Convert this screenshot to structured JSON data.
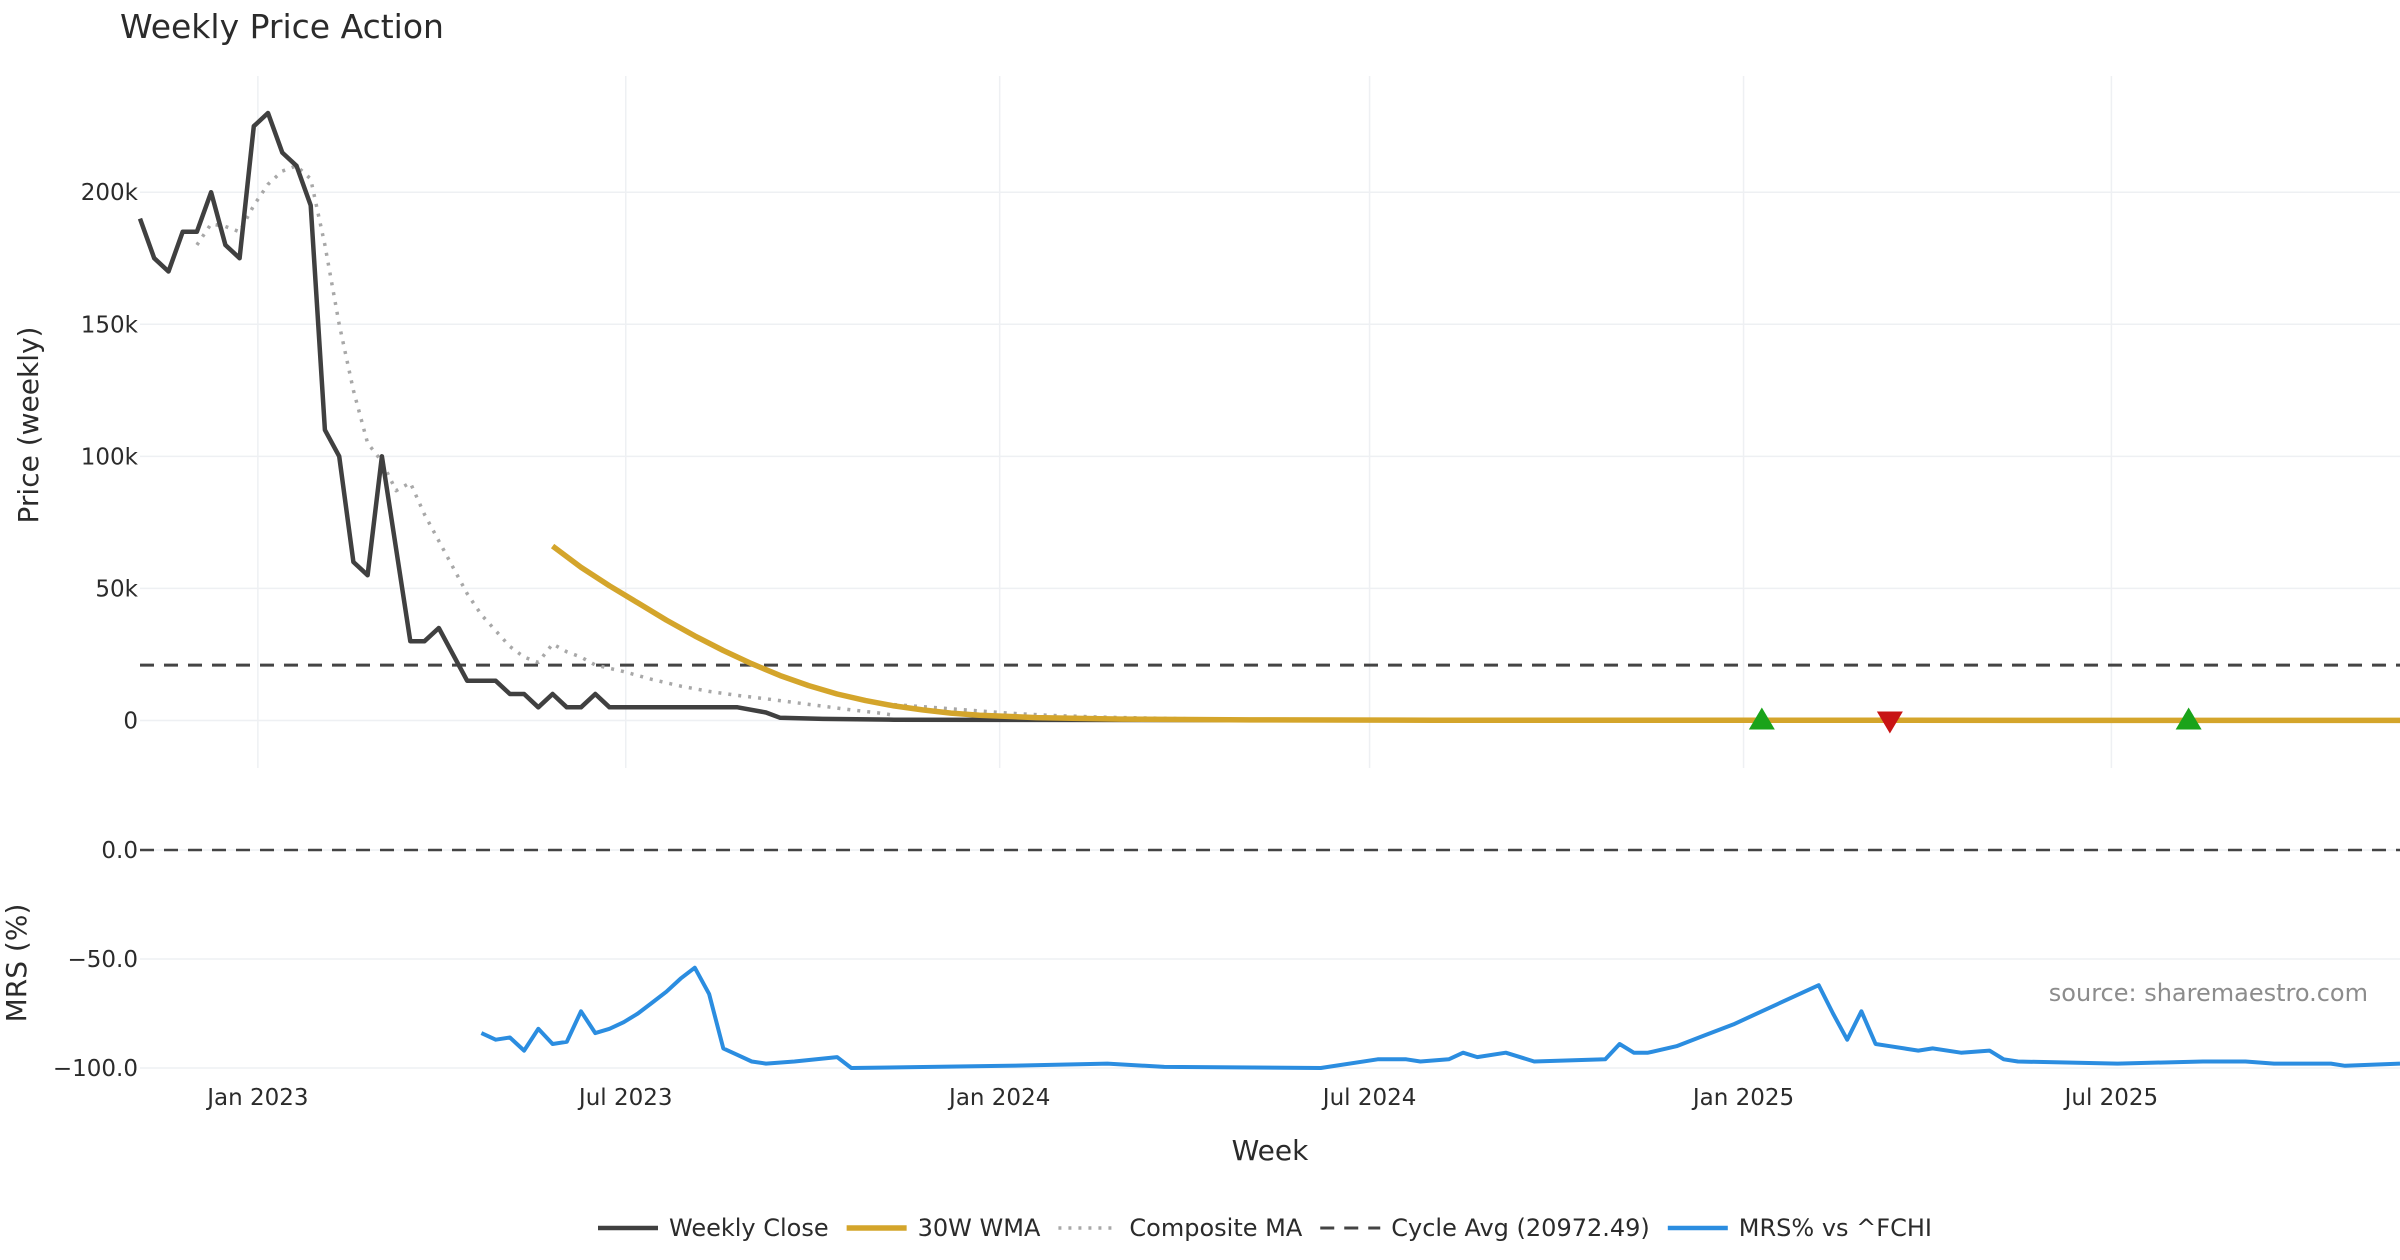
{
  "chart_data": [
    {
      "type": "line",
      "title": "Weekly Price Action",
      "ylabel": "Price (weekly)",
      "xlabel": "Week",
      "ylim": [
        -18000,
        244000
      ],
      "yticks": [
        0,
        50000,
        100000,
        150000,
        200000
      ],
      "ytick_labels": [
        "0",
        "50k",
        "100k",
        "150k",
        "200k"
      ],
      "x_tick_labels": [
        "Jan 2023",
        "Jul 2023",
        "Jan 2024",
        "Jul 2024",
        "Jan 2025",
        "Jul 2025"
      ],
      "x_tick_dates": [
        "2023-01-01",
        "2023-07-01",
        "2024-01-01",
        "2024-07-01",
        "2025-01-01",
        "2025-07-01"
      ],
      "xlim": [
        "2022-11-04",
        "2025-11-20"
      ],
      "grid": true,
      "series": [
        {
          "name": "Weekly Close",
          "color": "#404040",
          "style": "solid",
          "points": [
            [
              "2022-11-04",
              190000
            ],
            [
              "2022-11-11",
              175000
            ],
            [
              "2022-11-18",
              170000
            ],
            [
              "2022-11-25",
              185000
            ],
            [
              "2022-12-02",
              185000
            ],
            [
              "2022-12-09",
              200000
            ],
            [
              "2022-12-16",
              180000
            ],
            [
              "2022-12-23",
              175000
            ],
            [
              "2022-12-30",
              225000
            ],
            [
              "2023-01-06",
              230000
            ],
            [
              "2023-01-13",
              215000
            ],
            [
              "2023-01-20",
              210000
            ],
            [
              "2023-01-27",
              195000
            ],
            [
              "2023-02-03",
              110000
            ],
            [
              "2023-02-10",
              100000
            ],
            [
              "2023-02-17",
              60000
            ],
            [
              "2023-02-24",
              55000
            ],
            [
              "2023-03-03",
              100000
            ],
            [
              "2023-03-10",
              65000
            ],
            [
              "2023-03-17",
              30000
            ],
            [
              "2023-03-24",
              30000
            ],
            [
              "2023-03-31",
              35000
            ],
            [
              "2023-04-07",
              25000
            ],
            [
              "2023-04-14",
              15000
            ],
            [
              "2023-04-21",
              15000
            ],
            [
              "2023-04-28",
              15000
            ],
            [
              "2023-05-05",
              10000
            ],
            [
              "2023-05-12",
              10000
            ],
            [
              "2023-05-19",
              5000
            ],
            [
              "2023-05-26",
              10000
            ],
            [
              "2023-06-02",
              5000
            ],
            [
              "2023-06-09",
              5000
            ],
            [
              "2023-06-16",
              10000
            ],
            [
              "2023-06-23",
              5000
            ],
            [
              "2023-06-30",
              5000
            ],
            [
              "2023-08-25",
              5000
            ],
            [
              "2023-09-08",
              3000
            ],
            [
              "2023-09-15",
              1000
            ],
            [
              "2023-10-06",
              600
            ],
            [
              "2023-11-10",
              300
            ],
            [
              "2024-01-05",
              200
            ],
            [
              "2024-06-07",
              100
            ],
            [
              "2025-11-20",
              50
            ]
          ]
        },
        {
          "name": "30W WMA",
          "color": "#d4a52b",
          "style": "solid",
          "points": [
            [
              "2023-05-26",
              66000
            ],
            [
              "2023-06-09",
              58000
            ],
            [
              "2023-06-23",
              51000
            ],
            [
              "2023-07-07",
              44500
            ],
            [
              "2023-07-21",
              38000
            ],
            [
              "2023-08-04",
              32000
            ],
            [
              "2023-08-18",
              26500
            ],
            [
              "2023-09-01",
              21500
            ],
            [
              "2023-09-15",
              17000
            ],
            [
              "2023-09-29",
              13200
            ],
            [
              "2023-10-13",
              10000
            ],
            [
              "2023-10-27",
              7500
            ],
            [
              "2023-11-10",
              5500
            ],
            [
              "2023-11-24",
              4000
            ],
            [
              "2023-12-08",
              2800
            ],
            [
              "2023-12-22",
              2000
            ],
            [
              "2024-01-19",
              1100
            ],
            [
              "2024-03-01",
              500
            ],
            [
              "2024-05-03",
              200
            ],
            [
              "2024-08-02",
              80
            ],
            [
              "2025-11-20",
              30
            ]
          ]
        },
        {
          "name": "Composite MA",
          "color": "#a8a8a8",
          "style": "dotted",
          "segments": [
            [
              [
                "2022-12-02",
                180000
              ],
              [
                "2022-12-09",
                188000
              ],
              [
                "2022-12-16",
                187000
              ],
              [
                "2022-12-23",
                185000
              ],
              [
                "2022-12-30",
                195000
              ],
              [
                "2023-01-06",
                203000
              ],
              [
                "2023-01-13",
                208000
              ],
              [
                "2023-01-20",
                210000
              ],
              [
                "2023-01-27",
                205000
              ],
              [
                "2023-02-03",
                180000
              ],
              [
                "2023-02-10",
                150000
              ],
              [
                "2023-02-17",
                125000
              ],
              [
                "2023-02-24",
                105000
              ],
              [
                "2023-03-03",
                98000
              ],
              [
                "2023-03-10",
                87000
              ],
              [
                "2023-03-17",
                90000
              ],
              [
                "2023-03-24",
                78000
              ],
              [
                "2023-03-31",
                68000
              ],
              [
                "2023-04-07",
                58000
              ],
              [
                "2023-04-14",
                48000
              ],
              [
                "2023-04-21",
                40000
              ],
              [
                "2023-04-28",
                34000
              ],
              [
                "2023-05-05",
                28000
              ],
              [
                "2023-05-12",
                24000
              ],
              [
                "2023-05-19",
                22000
              ],
              [
                "2023-05-26",
                29000
              ],
              [
                "2023-06-02",
                26000
              ],
              [
                "2023-06-09",
                24000
              ],
              [
                "2023-06-16",
                21000
              ],
              [
                "2023-06-30",
                18500
              ],
              [
                "2023-07-14",
                15500
              ],
              [
                "2023-07-28",
                13000
              ],
              [
                "2023-08-11",
                11000
              ],
              [
                "2023-08-25",
                9500
              ],
              [
                "2023-09-08",
                8200
              ],
              [
                "2023-09-22",
                6800
              ],
              [
                "2023-10-06",
                5400
              ],
              [
                "2023-10-20",
                4000
              ],
              [
                "2023-11-03",
                2800
              ],
              [
                "2023-11-10",
                2000
              ]
            ],
            [
              [
                "2023-11-10",
                6000
              ],
              [
                "2023-11-24",
                5200
              ],
              [
                "2023-12-08",
                4400
              ],
              [
                "2023-12-22",
                3600
              ],
              [
                "2024-01-05",
                2800
              ],
              [
                "2024-01-26",
                1900
              ],
              [
                "2024-02-23",
                1200
              ],
              [
                "2024-03-29",
                700
              ],
              [
                "2024-05-03",
                400
              ],
              [
                "2024-07-05",
                200
              ],
              [
                "2025-11-20",
                100
              ]
            ]
          ]
        },
        {
          "name": "Cycle Avg (20972.49)",
          "color": "#444444",
          "style": "dashed",
          "value": 20972.49
        }
      ],
      "markers": [
        {
          "date": "2025-01-10",
          "value": 0,
          "type": "buy",
          "color": "#1aa31a"
        },
        {
          "date": "2025-03-14",
          "value": 0,
          "type": "sell",
          "color": "#c81414"
        },
        {
          "date": "2025-08-08",
          "value": 0,
          "type": "buy",
          "color": "#1aa31a"
        }
      ]
    },
    {
      "type": "line",
      "ylabel": "MRS (%)",
      "ylim": [
        -100,
        0
      ],
      "yticks": [
        0,
        -50,
        -100
      ],
      "ytick_labels": [
        "0.0",
        "−50.0",
        "−100.0"
      ],
      "xlabel": "Week",
      "annotation": "source: sharemaestro.com",
      "zero_line": {
        "value": 0,
        "style": "dashed",
        "color": "#444444"
      },
      "series": [
        {
          "name": "MRS% vs ^FCHI",
          "color": "#2b8de0",
          "style": "solid",
          "points": [
            [
              "2023-04-21",
              -84
            ],
            [
              "2023-04-28",
              -87
            ],
            [
              "2023-05-05",
              -86
            ],
            [
              "2023-05-12",
              -92
            ],
            [
              "2023-05-19",
              -82
            ],
            [
              "2023-05-26",
              -89
            ],
            [
              "2023-06-02",
              -88
            ],
            [
              "2023-06-09",
              -74
            ],
            [
              "2023-06-16",
              -84
            ],
            [
              "2023-06-23",
              -82
            ],
            [
              "2023-06-30",
              -79
            ],
            [
              "2023-07-07",
              -75
            ],
            [
              "2023-07-14",
              -70
            ],
            [
              "2023-07-21",
              -65
            ],
            [
              "2023-07-28",
              -59
            ],
            [
              "2023-08-04",
              -54
            ],
            [
              "2023-08-11",
              -66
            ],
            [
              "2023-08-18",
              -91
            ],
            [
              "2023-08-25",
              -94
            ],
            [
              "2023-09-01",
              -97
            ],
            [
              "2023-09-08",
              -98
            ],
            [
              "2023-09-22",
              -97
            ],
            [
              "2023-10-13",
              -95
            ],
            [
              "2023-10-20",
              -100
            ],
            [
              "2024-01-05",
              -99
            ],
            [
              "2024-02-23",
              -98
            ],
            [
              "2024-03-22",
              -99.5
            ],
            [
              "2024-06-07",
              -100
            ],
            [
              "2024-07-05",
              -96
            ],
            [
              "2024-07-19",
              -96
            ],
            [
              "2024-07-26",
              -97
            ],
            [
              "2024-08-09",
              -96
            ],
            [
              "2024-08-16",
              -93
            ],
            [
              "2024-08-23",
              -95
            ],
            [
              "2024-09-06",
              -93
            ],
            [
              "2024-09-20",
              -97
            ],
            [
              "2024-10-25",
              -96
            ],
            [
              "2024-11-01",
              -89
            ],
            [
              "2024-11-08",
              -93
            ],
            [
              "2024-11-15",
              -93
            ],
            [
              "2024-11-29",
              -90
            ],
            [
              "2024-12-13",
              -85
            ],
            [
              "2024-12-27",
              -80
            ],
            [
              "2025-01-10",
              -74
            ],
            [
              "2025-01-24",
              -68
            ],
            [
              "2025-02-07",
              -62
            ],
            [
              "2025-02-14",
              -75
            ],
            [
              "2025-02-21",
              -87
            ],
            [
              "2025-02-28",
              -74
            ],
            [
              "2025-03-07",
              -89
            ],
            [
              "2025-03-14",
              -90
            ],
            [
              "2025-03-21",
              -91
            ],
            [
              "2025-03-28",
              -92
            ],
            [
              "2025-04-04",
              -91
            ],
            [
              "2025-04-18",
              -93
            ],
            [
              "2025-05-02",
              -92
            ],
            [
              "2025-05-09",
              -96
            ],
            [
              "2025-05-16",
              -97
            ],
            [
              "2025-07-04",
              -98
            ],
            [
              "2025-08-15",
              -97
            ],
            [
              "2025-09-05",
              -97
            ],
            [
              "2025-09-19",
              -98
            ],
            [
              "2025-10-17",
              -98
            ],
            [
              "2025-10-24",
              -99
            ],
            [
              "2025-11-20",
              -98
            ]
          ]
        }
      ]
    }
  ]
}
